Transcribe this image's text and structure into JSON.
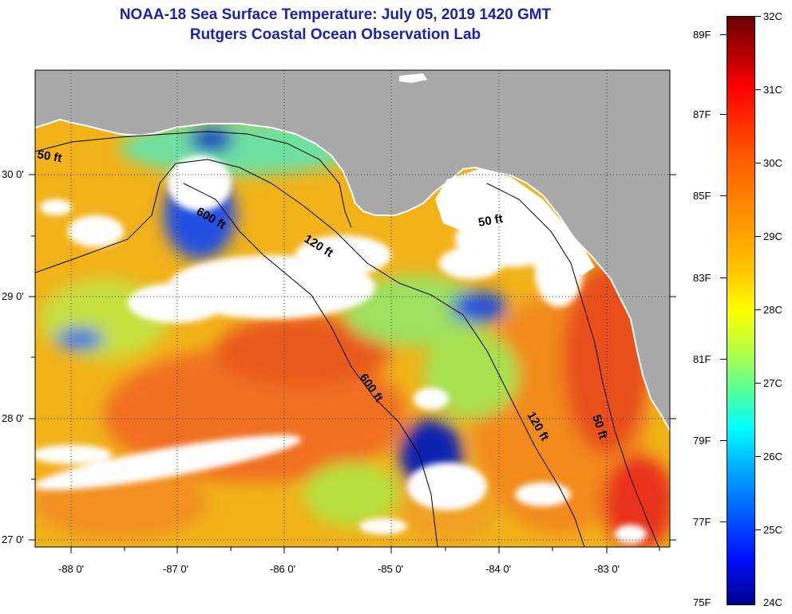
{
  "title": {
    "line1": "NOAA-18 Sea Surface Temperature:  July 05, 2019 1420 GMT",
    "line2": "Rutgers Coastal Ocean Observation Lab"
  },
  "map": {
    "latitude_labels": [
      "30 0'",
      "29 0'",
      "28 0'",
      "27 0'"
    ],
    "longitude_labels": [
      "-88 0'",
      "-87 0'",
      "-86 0'",
      "-85 0'",
      "-84 0'",
      "-83 0'"
    ],
    "contour_labels": [
      "50 ft",
      "600 ft",
      "120 ft",
      "50 ft",
      "600 ft",
      "120 ft",
      "50 ft"
    ],
    "colors": {
      "land": "#a9a9a9",
      "cloud_mask": "#ffffff",
      "contour": "#000000"
    }
  },
  "colorbar": {
    "celsius_labels": [
      "32C",
      "31C",
      "30C",
      "29C",
      "28C",
      "27C",
      "26C",
      "25C",
      "24C"
    ],
    "fahrenheit_labels": [
      "89F",
      "87F",
      "85F",
      "83F",
      "81F",
      "79F",
      "77F",
      "75F"
    ],
    "range_c": [
      24,
      32
    ],
    "range_f": [
      75,
      89.6
    ]
  }
}
